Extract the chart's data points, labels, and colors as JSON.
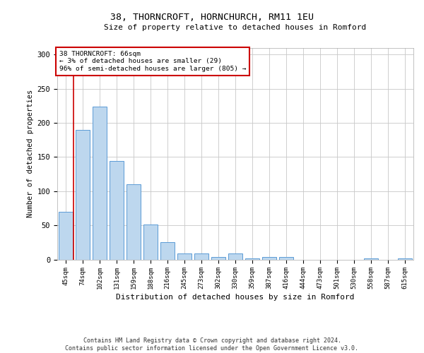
{
  "title1": "38, THORNCROFT, HORNCHURCH, RM11 1EU",
  "title2": "Size of property relative to detached houses in Romford",
  "xlabel": "Distribution of detached houses by size in Romford",
  "ylabel": "Number of detached properties",
  "footer1": "Contains HM Land Registry data © Crown copyright and database right 2024.",
  "footer2": "Contains public sector information licensed under the Open Government Licence v3.0.",
  "categories": [
    "45sqm",
    "74sqm",
    "102sqm",
    "131sqm",
    "159sqm",
    "188sqm",
    "216sqm",
    "245sqm",
    "273sqm",
    "302sqm",
    "330sqm",
    "359sqm",
    "387sqm",
    "416sqm",
    "444sqm",
    "473sqm",
    "501sqm",
    "530sqm",
    "558sqm",
    "587sqm",
    "615sqm"
  ],
  "values": [
    70,
    190,
    224,
    144,
    110,
    51,
    25,
    9,
    9,
    4,
    9,
    2,
    4,
    4,
    0,
    0,
    0,
    0,
    2,
    0,
    2
  ],
  "bar_color": "#bdd7ee",
  "bar_edge_color": "#5b9bd5",
  "background_color": "#ffffff",
  "grid_color": "#c8c8c8",
  "annotation_text": "38 THORNCROFT: 66sqm\n← 3% of detached houses are smaller (29)\n96% of semi-detached houses are larger (805) →",
  "annotation_box_color": "#ffffff",
  "annotation_box_edge": "#cc0000",
  "vline_color": "#cc0000",
  "vline_x": 0.47,
  "ylim": [
    0,
    310
  ],
  "yticks": [
    0,
    50,
    100,
    150,
    200,
    250,
    300
  ]
}
